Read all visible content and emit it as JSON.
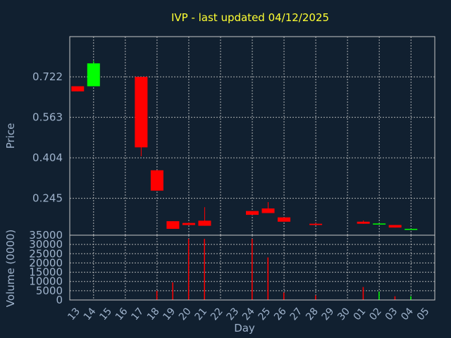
{
  "chart_data": [
    {
      "type": "candlestick",
      "title": "IVP - last updated 04/12/2025",
      "ylabel": "Price",
      "ylim": [
        0.1,
        0.88
      ],
      "yticks": [
        "0.722",
        "0.563",
        "0.404",
        "0.245"
      ],
      "up_color": "#00ff00",
      "down_color": "#ff0000",
      "days": [
        "13",
        "14",
        "15",
        "16",
        "17",
        "18",
        "19",
        "20",
        "21",
        "22",
        "23",
        "24",
        "25",
        "26",
        "27",
        "28",
        "29",
        "30",
        "01",
        "02",
        "03",
        "04",
        "05"
      ],
      "candles": [
        {
          "day": "13",
          "open": 0.685,
          "close": 0.665,
          "high": 0.685,
          "low": 0.665
        },
        {
          "day": "14",
          "open": 0.685,
          "close": 0.775,
          "high": 0.785,
          "low": 0.685
        },
        {
          "day": "17",
          "open": 0.722,
          "close": 0.445,
          "high": 0.722,
          "low": 0.41
        },
        {
          "day": "18",
          "open": 0.355,
          "close": 0.275,
          "high": 0.355,
          "low": 0.275
        },
        {
          "day": "19",
          "open": 0.155,
          "close": 0.125,
          "high": 0.155,
          "low": 0.125
        },
        {
          "day": "20",
          "open": 0.148,
          "close": 0.14,
          "high": 0.15,
          "low": 0.14
        },
        {
          "day": "21",
          "open": 0.157,
          "close": 0.137,
          "high": 0.21,
          "low": 0.137
        },
        {
          "day": "24",
          "open": 0.195,
          "close": 0.18,
          "high": 0.195,
          "low": 0.18
        },
        {
          "day": "25",
          "open": 0.205,
          "close": 0.187,
          "high": 0.23,
          "low": 0.187
        },
        {
          "day": "26",
          "open": 0.17,
          "close": 0.153,
          "high": 0.17,
          "low": 0.153
        },
        {
          "day": "28",
          "open": 0.145,
          "close": 0.14,
          "high": 0.148,
          "low": 0.14
        },
        {
          "day": "01",
          "open": 0.153,
          "close": 0.145,
          "high": 0.158,
          "low": 0.145
        },
        {
          "day": "02",
          "open": 0.143,
          "close": 0.146,
          "high": 0.146,
          "low": 0.143
        },
        {
          "day": "03",
          "open": 0.14,
          "close": 0.13,
          "high": 0.14,
          "low": 0.13
        },
        {
          "day": "04",
          "open": 0.123,
          "close": 0.125,
          "high": 0.125,
          "low": 0.123
        }
      ]
    },
    {
      "type": "bar",
      "ylabel": "Volume (0000)",
      "xlabel": "Day",
      "ylim": [
        0,
        35000
      ],
      "yticks": [
        "0",
        "5000",
        "10000",
        "15000",
        "20000",
        "25000",
        "30000",
        "35000"
      ],
      "bars": [
        {
          "day": "17",
          "value": 200,
          "color": "#ff0000"
        },
        {
          "day": "18",
          "value": 5000,
          "color": "#ff0000"
        },
        {
          "day": "19",
          "value": 9500,
          "color": "#ff0000"
        },
        {
          "day": "20",
          "value": 33000,
          "color": "#ff0000"
        },
        {
          "day": "21",
          "value": 33000,
          "color": "#ff0000"
        },
        {
          "day": "24",
          "value": 33000,
          "color": "#ff0000"
        },
        {
          "day": "25",
          "value": 23000,
          "color": "#ff0000"
        },
        {
          "day": "26",
          "value": 4000,
          "color": "#ff0000"
        },
        {
          "day": "28",
          "value": 2500,
          "color": "#ff0000"
        },
        {
          "day": "01",
          "value": 7000,
          "color": "#ff0000"
        },
        {
          "day": "02",
          "value": 4500,
          "color": "#00ff00"
        },
        {
          "day": "03",
          "value": 2000,
          "color": "#ff0000"
        },
        {
          "day": "04",
          "value": 2000,
          "color": "#00ff00"
        }
      ]
    }
  ]
}
